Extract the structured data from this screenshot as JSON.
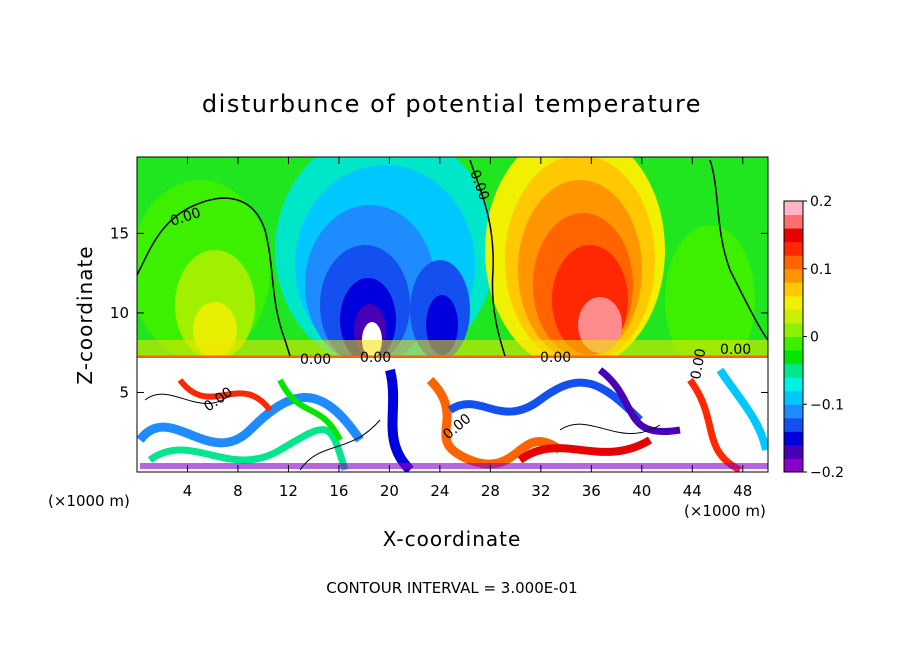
{
  "chart_data": {
    "type": "heatmap",
    "title": "disturbunce of potential temperature",
    "xlabel": "X-coordinate",
    "ylabel": "Z-coordinate",
    "x_unit": "(×1000 m)",
    "x_unit_right": "(×1000 m)",
    "xlim": [
      0,
      50
    ],
    "ylim": [
      0,
      19.8
    ],
    "x_ticks": [
      4,
      8,
      12,
      16,
      20,
      24,
      28,
      32,
      36,
      40,
      44,
      48
    ],
    "y_ticks": [
      5,
      10,
      15
    ],
    "colorbar": {
      "range": [
        -0.2,
        0.2
      ],
      "tick_values": [
        0.2,
        0.1,
        0,
        -0.1,
        -0.2
      ],
      "tick_labels": [
        "0.2",
        "0.1",
        "0",
        "−0.1",
        "−0.2"
      ],
      "colors": [
        "#8a00c8",
        "#4800b4",
        "#0000dc",
        "#1450f0",
        "#1e8cff",
        "#00c8ff",
        "#00f0e6",
        "#00e68c",
        "#00e600",
        "#3cf000",
        "#8cf000",
        "#c8f000",
        "#f0f000",
        "#ffc800",
        "#ff9600",
        "#ff6400",
        "#ff2800",
        "#e60000",
        "#ff6e6e",
        "#ffb4c8"
      ]
    },
    "contour_labels": [
      "0.00",
      "0.00",
      "0.00",
      "0.00",
      "0.00",
      "0.00",
      "0.00",
      "0.00",
      "0.00"
    ],
    "footer": "CONTOUR INTERVAL = 3.000E-01",
    "series": [
      {
        "values": [
          {
            "x": 7,
            "z": 13,
            "v": 0.04
          },
          {
            "x": 18,
            "z": 12,
            "v": -0.12
          },
          {
            "x": 25,
            "z": 11,
            "v": -0.11
          },
          {
            "x": 35,
            "z": 11,
            "v": 0.13
          },
          {
            "x": 46,
            "z": 13,
            "v": 0.01
          }
        ]
      }
    ]
  }
}
